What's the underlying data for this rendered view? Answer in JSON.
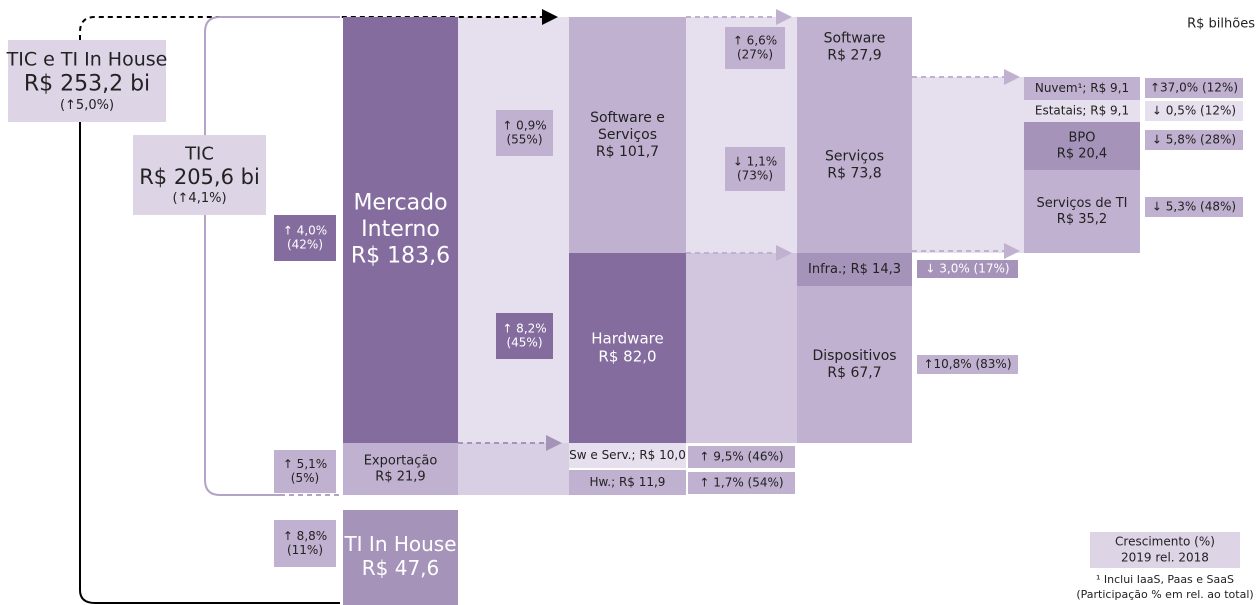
{
  "unit": "R$ bilhões",
  "boxes": [
    {
      "lines": [
        "TIC e TI In House",
        "R$ 253,2 bi",
        "(↑5,0%)"
      ]
    },
    {
      "lines": [
        "TIC",
        "R$ 205,6 bi",
        "(↑4,1%)"
      ]
    },
    {
      "lines": [
        "Mercado",
        "Interno",
        "R$ 183,6"
      ]
    },
    {
      "lines": [
        "Software e",
        "Serviços",
        "R$ 101,7"
      ]
    },
    {
      "lines": [
        "Hardware",
        "R$ 82,0"
      ]
    },
    {
      "lines": [
        "Software",
        "R$ 27,9"
      ]
    },
    {
      "lines": [
        "Serviços",
        "R$ 73,8"
      ]
    },
    {
      "lines": [
        "Infra.; R$ 14,3"
      ]
    },
    {
      "lines": [
        "Dispositivos",
        "R$ 67,7"
      ]
    },
    {
      "lines": [
        "Nuvem¹; R$ 9,1"
      ]
    },
    {
      "lines": [
        "Estatais; R$ 9,1"
      ]
    },
    {
      "lines": [
        "BPO",
        "R$ 20,4"
      ]
    },
    {
      "lines": [
        "Serviços de TI",
        "R$ 35,2"
      ]
    },
    {
      "lines": [
        "Exportação",
        "R$ 21,9"
      ]
    },
    {
      "lines": [
        "Sw e Serv.; R$ 10,0"
      ]
    },
    {
      "lines": [
        "Hw.; R$ 11,9"
      ]
    },
    {
      "lines": [
        "TI In House",
        "R$ 47,6"
      ]
    }
  ],
  "badges": [
    {
      "lines": [
        "↑ 4,0%",
        "(42%)"
      ]
    },
    {
      "lines": [
        "↑ 0,9%",
        "(55%)"
      ]
    },
    {
      "lines": [
        "↑ 8,2%",
        "(45%)"
      ]
    },
    {
      "lines": [
        "↑ 6,6%",
        "(27%)"
      ]
    },
    {
      "lines": [
        "↓ 1,1%",
        "(73%)"
      ]
    },
    {
      "lines": [
        "↓ 3,0% (17%)"
      ]
    },
    {
      "lines": [
        "↑10,8% (83%)"
      ]
    },
    {
      "lines": [
        "↑37,0% (12%)"
      ]
    },
    {
      "lines": [
        "↓ 0,5% (12%)"
      ]
    },
    {
      "lines": [
        "↓ 5,8% (28%)"
      ]
    },
    {
      "lines": [
        "↓ 5,3% (48%)"
      ]
    },
    {
      "lines": [
        "↑ 9,5% (46%)"
      ]
    },
    {
      "lines": [
        "↑ 1,7% (54%)"
      ]
    },
    {
      "lines": [
        "↑ 5,1%",
        "(5%)"
      ]
    },
    {
      "lines": [
        "↑ 8,8%",
        "(11%)"
      ]
    }
  ],
  "legend": {
    "title": [
      "Crescimento (%)",
      "2019 rel. 2018"
    ],
    "notes": [
      "¹ Inclui IaaS, Paas e SaaS",
      "(Participação % em rel. ao total)"
    ]
  }
}
